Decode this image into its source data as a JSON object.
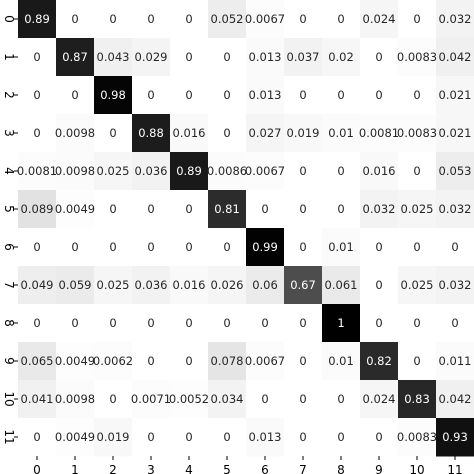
{
  "chart_data": {
    "type": "heatmap",
    "title": "",
    "xlabel": "",
    "ylabel": "",
    "x_labels": [
      "0",
      "1",
      "2",
      "3",
      "4",
      "5",
      "6",
      "7",
      "8",
      "9",
      "10",
      "11"
    ],
    "y_labels": [
      "0",
      "1",
      "2",
      "3",
      "4",
      "5",
      "6",
      "7",
      "8",
      "9",
      "10",
      "11"
    ],
    "value_range": [
      0,
      1
    ],
    "colormap": "greys",
    "low_color": "#ffffff",
    "high_color": "#000000",
    "matrix": [
      [
        0.89,
        0,
        0,
        0,
        0,
        0.052,
        0.0067,
        0,
        0,
        0.024,
        0,
        0.032
      ],
      [
        0,
        0.87,
        0.043,
        0.029,
        0,
        0,
        0.013,
        0.037,
        0.02,
        0,
        0.0083,
        0.042
      ],
      [
        0,
        0,
        0.98,
        0,
        0,
        0,
        0.013,
        0,
        0,
        0,
        0,
        0.021
      ],
      [
        0,
        0.0098,
        0,
        0.88,
        0.016,
        0,
        0.027,
        0.019,
        0.01,
        0.0081,
        0.0083,
        0.021
      ],
      [
        0.0081,
        0.0098,
        0.025,
        0.036,
        0.89,
        0.0086,
        0.0067,
        0,
        0,
        0.016,
        0,
        0.053
      ],
      [
        0.089,
        0.0049,
        0,
        0,
        0,
        0.81,
        0,
        0,
        0,
        0.032,
        0.025,
        0.032
      ],
      [
        0,
        0,
        0,
        0,
        0,
        0,
        0.99,
        0,
        0.01,
        0,
        0,
        0
      ],
      [
        0.049,
        0.059,
        0.025,
        0.036,
        0.016,
        0.026,
        0.06,
        0.67,
        0.061,
        0,
        0.025,
        0.032
      ],
      [
        0,
        0,
        0,
        0,
        0,
        0,
        0,
        0,
        1,
        0,
        0,
        0
      ],
      [
        0.065,
        0.0049,
        0.0062,
        0,
        0,
        0.078,
        0.0067,
        0,
        0.01,
        0.82,
        0,
        0.011
      ],
      [
        0.041,
        0.0098,
        0,
        0.0071,
        0.0052,
        0.034,
        0,
        0,
        0,
        0.024,
        0.83,
        0.042
      ],
      [
        0,
        0.0049,
        0.019,
        0,
        0,
        0,
        0.013,
        0,
        0,
        0,
        0.0083,
        0.93
      ]
    ],
    "grid": false,
    "legend": "none"
  }
}
